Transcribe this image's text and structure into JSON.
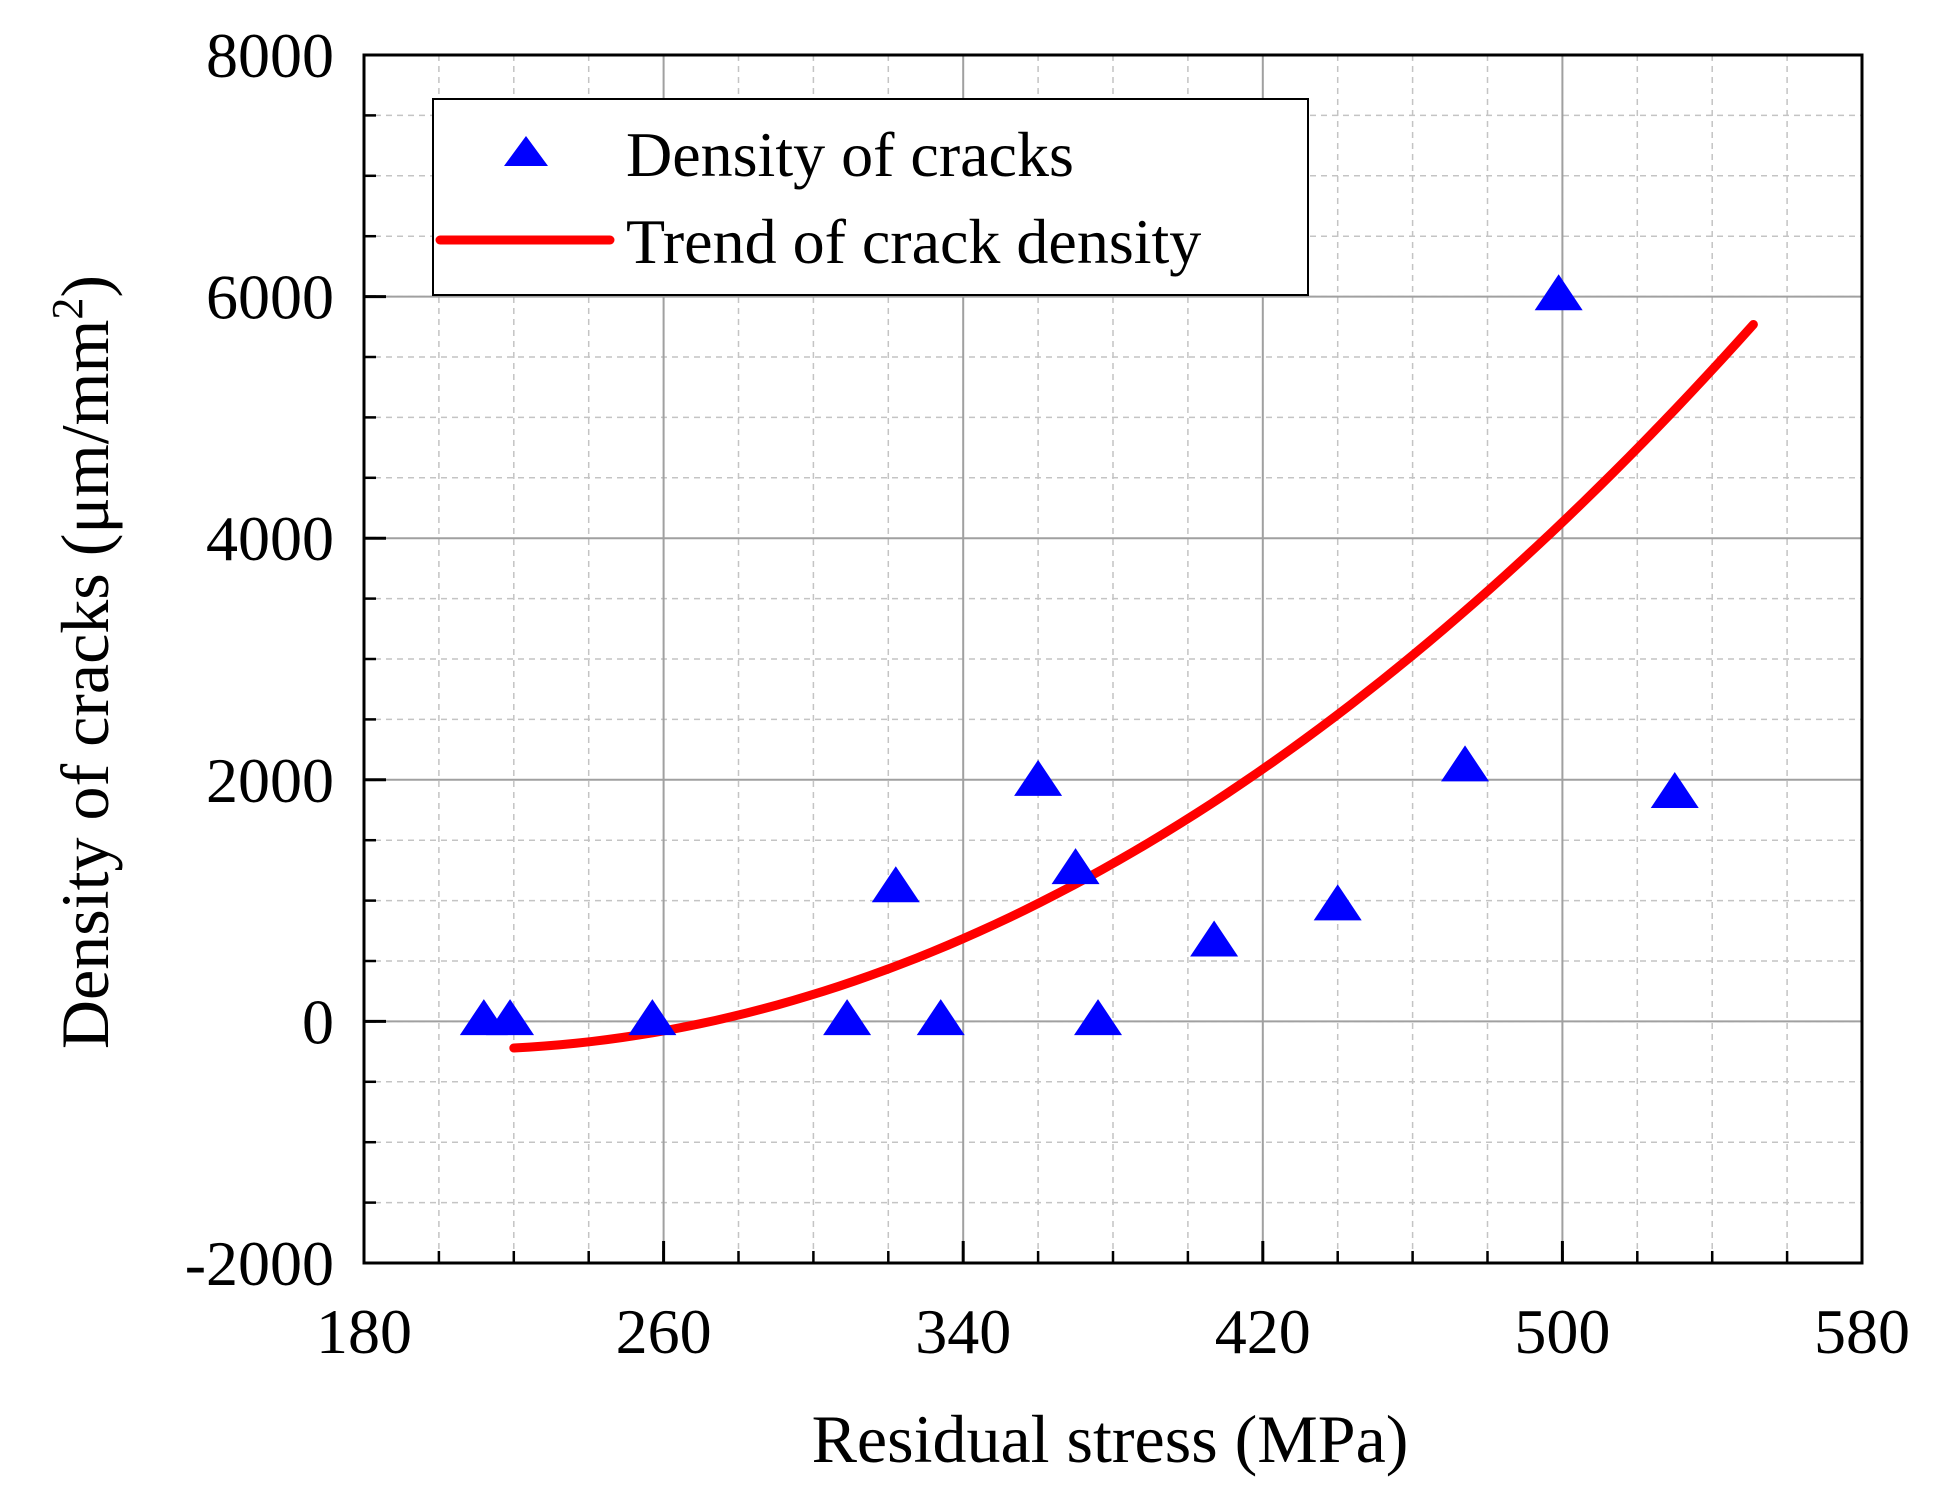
{
  "chart_data": {
    "type": "scatter",
    "title": "",
    "xlabel": "Residual stress (MPa)",
    "ylabel_main": "Density of cracks (μm/mm",
    "ylabel_sup": "2",
    "ylabel_close": ")",
    "xlim": [
      180,
      580
    ],
    "ylim": [
      -2000,
      8000
    ],
    "x_ticks": [
      180,
      260,
      340,
      420,
      500,
      580
    ],
    "y_ticks": [
      -2000,
      0,
      2000,
      4000,
      6000,
      8000
    ],
    "x_minor_step": 20,
    "y_minor_step": 500,
    "grid": true,
    "legend_position": "top-left",
    "colors": {
      "points": "#0000ff",
      "trend": "#ff0000",
      "axis": "#000000",
      "grid": "#a0a0a0"
    },
    "series": [
      {
        "name": "Density of cracks",
        "kind": "points",
        "marker": "triangle-up",
        "x": [
          212,
          219,
          257,
          309,
          322,
          334,
          360,
          370,
          376,
          407,
          440,
          474,
          499,
          530
        ],
        "y": [
          0,
          0,
          0,
          0,
          1100,
          0,
          1980,
          1250,
          0,
          650,
          950,
          2100,
          6000,
          1880
        ]
      },
      {
        "name": "Trend of crack density",
        "kind": "line",
        "fit": "quadratic",
        "x_range": [
          220,
          551
        ],
        "coefficients": [
          1860,
          -20.455,
          0.05
        ]
      }
    ]
  }
}
